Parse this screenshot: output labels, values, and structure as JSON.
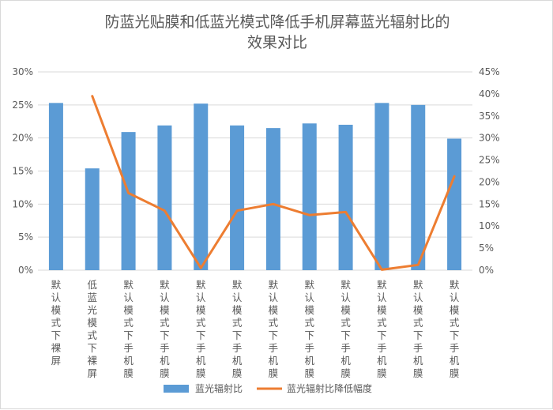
{
  "chart_data": {
    "type": "bar+line",
    "title_lines": [
      "防蓝光贴膜和低蓝光模式降低手机屏幕蓝光辐射比的",
      "效果对比"
    ],
    "categories": [
      "默认模式下裸屏",
      "低蓝光模式下裸屏",
      "默认模式下手机膜",
      "默认模式下手机膜",
      "默认模式下手机膜",
      "默认模式下手机膜",
      "默认模式下手机膜",
      "默认模式下手机膜",
      "默认模式下手机膜",
      "默认模式下手机膜",
      "默认模式下手机膜",
      "默认模式下手机膜"
    ],
    "series": [
      {
        "name": "蓝光辐射比",
        "type": "bar",
        "axis": "left",
        "color": "#5b9bd5",
        "values": [
          25.3,
          15.4,
          20.9,
          21.9,
          25.2,
          21.9,
          21.5,
          22.2,
          22.0,
          25.3,
          25.0,
          19.9
        ]
      },
      {
        "name": "蓝光辐射比降低幅度",
        "type": "line",
        "axis": "right",
        "color": "#ed7d31",
        "values": [
          null,
          39.5,
          17.5,
          13.5,
          0.5,
          13.5,
          15.0,
          12.5,
          13.2,
          0.1,
          1.2,
          21.3
        ]
      }
    ],
    "y_left": {
      "min": 0,
      "max": 30,
      "step": 5,
      "ticks": [
        "0%",
        "5%",
        "10%",
        "15%",
        "20%",
        "25%",
        "30%"
      ]
    },
    "y_right": {
      "min": 0,
      "max": 45,
      "step": 5,
      "ticks": [
        "0%",
        "5%",
        "10%",
        "15%",
        "20%",
        "25%",
        "30%",
        "35%",
        "40%",
        "45%"
      ]
    },
    "grid": true,
    "legend_position": "bottom",
    "gridline_color": "#d9d9d9",
    "text_color": "#595959"
  }
}
